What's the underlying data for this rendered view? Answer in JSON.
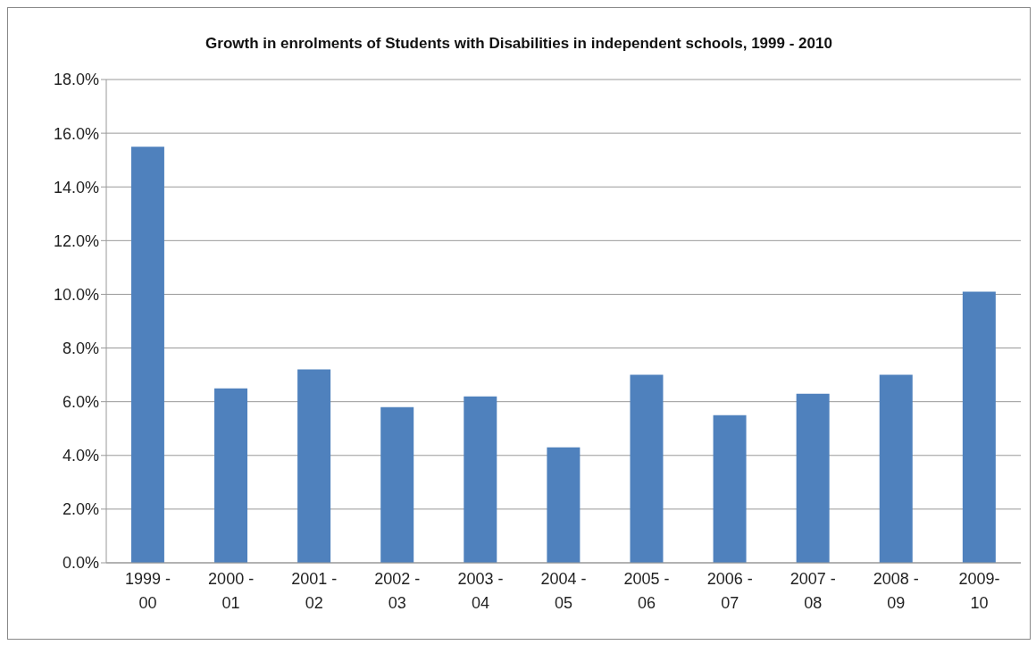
{
  "chart_data": {
    "type": "bar",
    "title": "Growth in enrolments of Students with Disabilities in independent schools, 1999 - 2010",
    "categories": [
      "1999 - 00",
      "2000 - 01",
      "2001 - 02",
      "2002 - 03",
      "2003 - 04",
      "2004 - 05",
      "2005 - 06",
      "2006 - 07",
      "2007 - 08",
      "2008 - 09",
      "2009- 10"
    ],
    "values": [
      15.5,
      6.5,
      7.2,
      5.8,
      6.2,
      4.3,
      7.0,
      5.5,
      6.3,
      7.0,
      10.1
    ],
    "color": "#4f81bd",
    "ylim": [
      0,
      18
    ],
    "yticks": [
      {
        "value": 0,
        "label": "0.0%"
      },
      {
        "value": 2,
        "label": "2.0%"
      },
      {
        "value": 4,
        "label": "4.0%"
      },
      {
        "value": 6,
        "label": "6.0%"
      },
      {
        "value": 8,
        "label": "8.0%"
      },
      {
        "value": 10,
        "label": "10.0%"
      },
      {
        "value": 12,
        "label": "12.0%"
      },
      {
        "value": 14,
        "label": "14.0%"
      },
      {
        "value": 16,
        "label": "16.0%"
      },
      {
        "value": 18,
        "label": "18.0%"
      }
    ],
    "grid": "y",
    "legend": false
  }
}
